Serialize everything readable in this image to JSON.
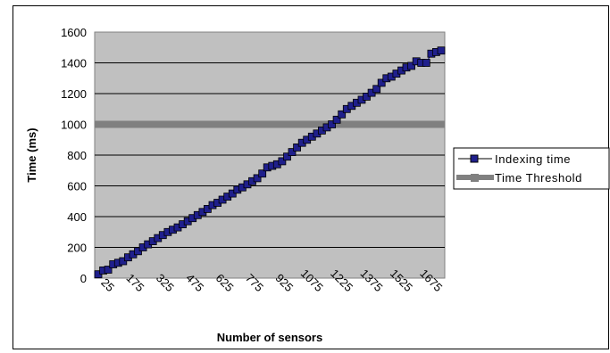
{
  "chart_data": {
    "type": "line",
    "title": "",
    "xlabel": "Number of sensors",
    "ylabel": "Time (ms)",
    "ylim": [
      0,
      1600
    ],
    "yticks": [
      0,
      200,
      400,
      600,
      800,
      1000,
      1200,
      1400,
      1600
    ],
    "xticks": [
      "25",
      "175",
      "325",
      "475",
      "625",
      "775",
      "925",
      "1075",
      "1225",
      "1375",
      "1525",
      "1675"
    ],
    "grid": "horizontal",
    "legend_position": "right",
    "x": [
      1,
      25,
      50,
      75,
      100,
      125,
      150,
      175,
      200,
      225,
      250,
      275,
      300,
      325,
      350,
      375,
      400,
      425,
      450,
      475,
      500,
      525,
      550,
      575,
      600,
      625,
      650,
      675,
      700,
      725,
      750,
      775,
      800,
      825,
      850,
      875,
      900,
      925,
      950,
      975,
      1000,
      1025,
      1050,
      1075,
      1100,
      1125,
      1150,
      1175,
      1200,
      1225,
      1250,
      1275,
      1300,
      1325,
      1350,
      1375,
      1400,
      1425,
      1450,
      1475,
      1500,
      1525,
      1550,
      1575,
      1600,
      1625,
      1650,
      1675,
      1700,
      1725
    ],
    "series": [
      {
        "name": "Indexing time",
        "color": "#1f1f8c",
        "marker": "square",
        "values": [
          25,
          50,
          55,
          90,
          100,
          110,
          135,
          155,
          175,
          200,
          220,
          240,
          260,
          280,
          300,
          315,
          330,
          350,
          370,
          390,
          410,
          430,
          450,
          475,
          490,
          510,
          530,
          550,
          575,
          590,
          610,
          630,
          650,
          680,
          720,
          730,
          740,
          760,
          790,
          820,
          850,
          880,
          900,
          920,
          940,
          960,
          980,
          1000,
          1030,
          1065,
          1100,
          1120,
          1140,
          1160,
          1180,
          1205,
          1230,
          1270,
          1300,
          1310,
          1330,
          1350,
          1370,
          1380,
          1410,
          1400,
          1400,
          1460,
          1470,
          1480
        ]
      },
      {
        "name": "Time Threshold",
        "color": "#808080",
        "marker": "square",
        "constant": 1000
      }
    ]
  }
}
